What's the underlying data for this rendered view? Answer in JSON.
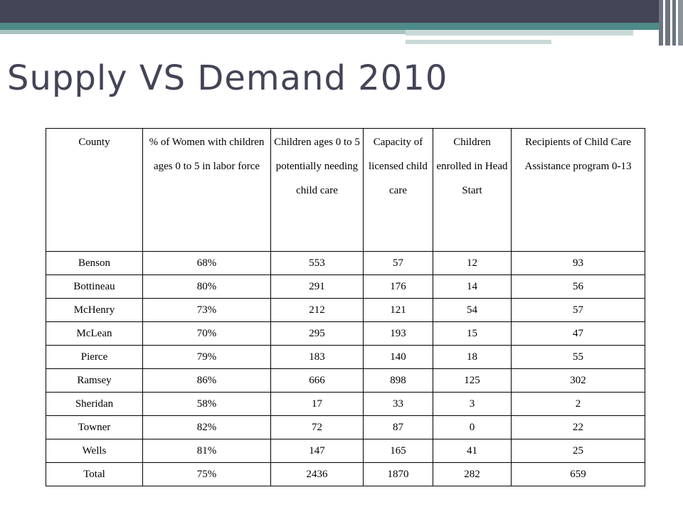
{
  "title": "Supply VS Demand 2010",
  "table": {
    "headers": [
      "County",
      "% of Women with children ages 0 to 5 in labor force",
      "Children ages 0 to 5 potentially needing child care",
      "Capacity of licensed child care",
      "Children enrolled in Head Start",
      "Recipients of Child Care Assistance program 0-13"
    ],
    "rows": [
      [
        "Benson",
        "68%",
        "553",
        "57",
        "12",
        "93"
      ],
      [
        "Bottineau",
        "80%",
        "291",
        "176",
        "14",
        "56"
      ],
      [
        "McHenry",
        "73%",
        "212",
        "121",
        "54",
        "57"
      ],
      [
        "McLean",
        "70%",
        "295",
        "193",
        "15",
        "47"
      ],
      [
        "Pierce",
        "79%",
        "183",
        "140",
        "18",
        "55"
      ],
      [
        "Ramsey",
        "86%",
        "666",
        "898",
        "125",
        "302"
      ],
      [
        "Sheridan",
        "58%",
        "17",
        "33",
        "3",
        "2"
      ],
      [
        "Towner",
        "82%",
        "72",
        "87",
        "0",
        "22"
      ],
      [
        "Wells",
        "81%",
        "147",
        "165",
        "41",
        "25"
      ],
      [
        "Total",
        "75%",
        "2436",
        "1870",
        "282",
        "659"
      ]
    ]
  },
  "colors": {
    "title": "#434456",
    "header_bar": "#434456",
    "accent_teal": "#4e8a88"
  }
}
